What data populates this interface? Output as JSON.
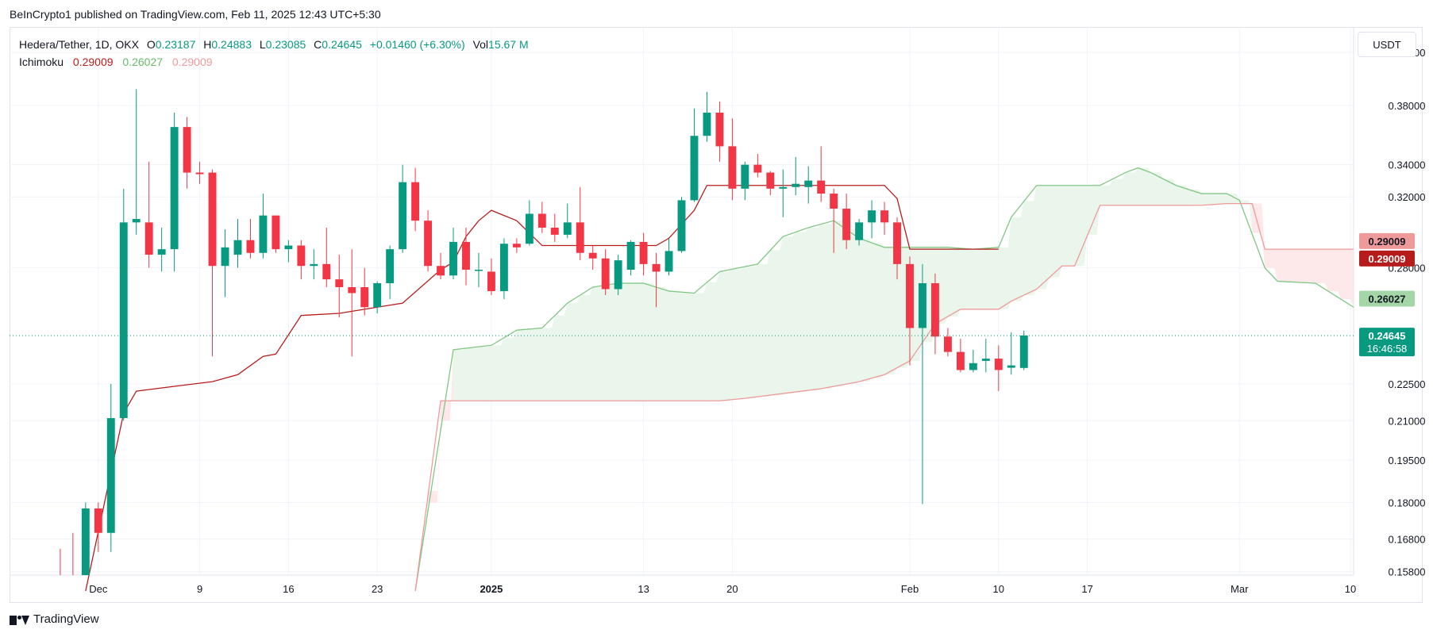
{
  "header": {
    "published": "BeInCrypto1 published on TradingView.com, Feb 11, 2025 12:43 UTC+5:30"
  },
  "legend": {
    "symbol": "Hedera/Tether, 1D, OKX",
    "open_label": "O",
    "open_value": "0.23187",
    "high_label": "H",
    "high_value": "0.24883",
    "low_label": "L",
    "low_value": "0.23085",
    "close_label": "C",
    "close_value": "0.24645",
    "change_value": "+0.01460 (+6.30%)",
    "vol_label": "Vol",
    "vol_value": "15.67 M",
    "indicator_name": "Ichimoku",
    "ichimoku_values": [
      "0.29009",
      "0.26027",
      "0.29009"
    ]
  },
  "currency_button": "USDT",
  "footer": {
    "brand": "TradingView"
  },
  "colors": {
    "up": "#089981",
    "down": "#f23645",
    "tenkan": "#b71c1c",
    "span_a": "#81c784",
    "span_b": "#ef9a9a",
    "cloud_bull": "#e8f5e9",
    "cloud_bear": "#fde7e7",
    "grid": "#f0f3fa"
  },
  "chart_data": {
    "type": "candlestick",
    "y_scale": "log",
    "ylim": [
      0.157,
      0.44
    ],
    "y_ticks": [
      0.42,
      0.38,
      0.34,
      0.32,
      0.28,
      0.225,
      0.21,
      0.195,
      0.18,
      0.168,
      0.158
    ],
    "y_tick_labels": [
      "0.42000",
      "0.38000",
      "0.34000",
      "0.32000",
      "0.28000",
      "0.22500",
      "0.21000",
      "0.19500",
      "0.18000",
      "0.16800",
      "0.15800"
    ],
    "x_ticks": [
      {
        "date": "2024-12-01",
        "label": "Dec",
        "bold": false
      },
      {
        "date": "2024-12-09",
        "label": "9",
        "bold": false
      },
      {
        "date": "2024-12-16",
        "label": "16",
        "bold": false
      },
      {
        "date": "2024-12-23",
        "label": "23",
        "bold": false
      },
      {
        "date": "2025-01-01",
        "label": "2025",
        "bold": true
      },
      {
        "date": "2025-01-13",
        "label": "13",
        "bold": false
      },
      {
        "date": "2025-01-20",
        "label": "20",
        "bold": false
      },
      {
        "date": "2025-02-03",
        "label": "Feb",
        "bold": false
      },
      {
        "date": "2025-02-10",
        "label": "10",
        "bold": false
      },
      {
        "date": "2025-02-17",
        "label": "17",
        "bold": false
      },
      {
        "date": "2025-03-01",
        "label": "Mar",
        "bold": false
      },
      {
        "date": "2025-03-10",
        "label": "10",
        "bold": false
      }
    ],
    "x_range": [
      "2024-11-24",
      "2025-03-10"
    ],
    "candles": [
      {
        "d": "2024-11-28",
        "o": 0.1485,
        "h": 0.165,
        "l": 0.14,
        "c": 0.146
      },
      {
        "d": "2024-11-29",
        "o": 0.152,
        "h": 0.17,
        "l": 0.14,
        "c": 0.145
      },
      {
        "d": "2024-11-30",
        "o": 0.156,
        "h": 0.18,
        "l": 0.15,
        "c": 0.178
      },
      {
        "d": "2024-12-01",
        "o": 0.178,
        "h": 0.18,
        "l": 0.164,
        "c": 0.17
      },
      {
        "d": "2024-12-02",
        "o": 0.17,
        "h": 0.225,
        "l": 0.164,
        "c": 0.211
      },
      {
        "d": "2024-12-03",
        "o": 0.211,
        "h": 0.325,
        "l": 0.21,
        "c": 0.305
      },
      {
        "d": "2024-12-04",
        "o": 0.305,
        "h": 0.392,
        "l": 0.298,
        "c": 0.307
      },
      {
        "d": "2024-12-05",
        "o": 0.305,
        "h": 0.342,
        "l": 0.28,
        "c": 0.287
      },
      {
        "d": "2024-12-06",
        "o": 0.287,
        "h": 0.302,
        "l": 0.278,
        "c": 0.29
      },
      {
        "d": "2024-12-07",
        "o": 0.29,
        "h": 0.375,
        "l": 0.278,
        "c": 0.365
      },
      {
        "d": "2024-12-08",
        "o": 0.365,
        "h": 0.372,
        "l": 0.325,
        "c": 0.335
      },
      {
        "d": "2024-12-09",
        "o": 0.335,
        "h": 0.342,
        "l": 0.328,
        "c": 0.334
      },
      {
        "d": "2024-12-10",
        "o": 0.335,
        "h": 0.337,
        "l": 0.237,
        "c": 0.281
      },
      {
        "d": "2024-12-11",
        "o": 0.281,
        "h": 0.301,
        "l": 0.265,
        "c": 0.291
      },
      {
        "d": "2024-12-12",
        "o": 0.287,
        "h": 0.307,
        "l": 0.28,
        "c": 0.295
      },
      {
        "d": "2024-12-13",
        "o": 0.295,
        "h": 0.307,
        "l": 0.285,
        "c": 0.288
      },
      {
        "d": "2024-12-14",
        "o": 0.288,
        "h": 0.322,
        "l": 0.285,
        "c": 0.309
      },
      {
        "d": "2024-12-15",
        "o": 0.309,
        "h": 0.309,
        "l": 0.288,
        "c": 0.29
      },
      {
        "d": "2024-12-16",
        "o": 0.29,
        "h": 0.295,
        "l": 0.283,
        "c": 0.292
      },
      {
        "d": "2024-12-17",
        "o": 0.292,
        "h": 0.295,
        "l": 0.274,
        "c": 0.281
      },
      {
        "d": "2024-12-18",
        "o": 0.281,
        "h": 0.29,
        "l": 0.274,
        "c": 0.282
      },
      {
        "d": "2024-12-19",
        "o": 0.282,
        "h": 0.302,
        "l": 0.27,
        "c": 0.274
      },
      {
        "d": "2024-12-20",
        "o": 0.274,
        "h": 0.287,
        "l": 0.255,
        "c": 0.27
      },
      {
        "d": "2024-12-21",
        "o": 0.27,
        "h": 0.29,
        "l": 0.237,
        "c": 0.267
      },
      {
        "d": "2024-12-22",
        "o": 0.27,
        "h": 0.28,
        "l": 0.256,
        "c": 0.26
      },
      {
        "d": "2024-12-23",
        "o": 0.26,
        "h": 0.273,
        "l": 0.257,
        "c": 0.272
      },
      {
        "d": "2024-12-24",
        "o": 0.272,
        "h": 0.292,
        "l": 0.264,
        "c": 0.29
      },
      {
        "d": "2024-12-25",
        "o": 0.29,
        "h": 0.34,
        "l": 0.288,
        "c": 0.329
      },
      {
        "d": "2024-12-26",
        "o": 0.329,
        "h": 0.338,
        "l": 0.3,
        "c": 0.306
      },
      {
        "d": "2024-12-27",
        "o": 0.306,
        "h": 0.312,
        "l": 0.278,
        "c": 0.281
      },
      {
        "d": "2024-12-28",
        "o": 0.281,
        "h": 0.288,
        "l": 0.274,
        "c": 0.276
      },
      {
        "d": "2024-12-29",
        "o": 0.276,
        "h": 0.302,
        "l": 0.274,
        "c": 0.294
      },
      {
        "d": "2024-12-30",
        "o": 0.294,
        "h": 0.302,
        "l": 0.271,
        "c": 0.279
      },
      {
        "d": "2024-12-31",
        "o": 0.279,
        "h": 0.288,
        "l": 0.27,
        "c": 0.279
      },
      {
        "d": "2025-01-01",
        "o": 0.278,
        "h": 0.285,
        "l": 0.266,
        "c": 0.268
      },
      {
        "d": "2025-01-02",
        "o": 0.268,
        "h": 0.296,
        "l": 0.264,
        "c": 0.293
      },
      {
        "d": "2025-01-03",
        "o": 0.293,
        "h": 0.296,
        "l": 0.288,
        "c": 0.291
      },
      {
        "d": "2025-01-04",
        "o": 0.293,
        "h": 0.318,
        "l": 0.292,
        "c": 0.31
      },
      {
        "d": "2025-01-05",
        "o": 0.31,
        "h": 0.317,
        "l": 0.299,
        "c": 0.302
      },
      {
        "d": "2025-01-06",
        "o": 0.302,
        "h": 0.31,
        "l": 0.294,
        "c": 0.298
      },
      {
        "d": "2025-01-07",
        "o": 0.298,
        "h": 0.316,
        "l": 0.296,
        "c": 0.305
      },
      {
        "d": "2025-01-08",
        "o": 0.305,
        "h": 0.326,
        "l": 0.284,
        "c": 0.288
      },
      {
        "d": "2025-01-09",
        "o": 0.288,
        "h": 0.292,
        "l": 0.279,
        "c": 0.285
      },
      {
        "d": "2025-01-10",
        "o": 0.285,
        "h": 0.29,
        "l": 0.266,
        "c": 0.269
      },
      {
        "d": "2025-01-11",
        "o": 0.269,
        "h": 0.287,
        "l": 0.266,
        "c": 0.284
      },
      {
        "d": "2025-01-12",
        "o": 0.279,
        "h": 0.295,
        "l": 0.276,
        "c": 0.294
      },
      {
        "d": "2025-01-13",
        "o": 0.294,
        "h": 0.299,
        "l": 0.276,
        "c": 0.282
      },
      {
        "d": "2025-01-14",
        "o": 0.282,
        "h": 0.288,
        "l": 0.26,
        "c": 0.278
      },
      {
        "d": "2025-01-15",
        "o": 0.278,
        "h": 0.296,
        "l": 0.276,
        "c": 0.289
      },
      {
        "d": "2025-01-16",
        "o": 0.289,
        "h": 0.32,
        "l": 0.288,
        "c": 0.318
      },
      {
        "d": "2025-01-17",
        "o": 0.318,
        "h": 0.378,
        "l": 0.317,
        "c": 0.359
      },
      {
        "d": "2025-01-18",
        "o": 0.359,
        "h": 0.39,
        "l": 0.355,
        "c": 0.375
      },
      {
        "d": "2025-01-19",
        "o": 0.375,
        "h": 0.383,
        "l": 0.342,
        "c": 0.352
      },
      {
        "d": "2025-01-20",
        "o": 0.352,
        "h": 0.371,
        "l": 0.318,
        "c": 0.325
      },
      {
        "d": "2025-01-21",
        "o": 0.325,
        "h": 0.342,
        "l": 0.318,
        "c": 0.34
      },
      {
        "d": "2025-01-22",
        "o": 0.34,
        "h": 0.347,
        "l": 0.332,
        "c": 0.335
      },
      {
        "d": "2025-01-23",
        "o": 0.335,
        "h": 0.336,
        "l": 0.321,
        "c": 0.325
      },
      {
        "d": "2025-01-24",
        "o": 0.325,
        "h": 0.337,
        "l": 0.308,
        "c": 0.326
      },
      {
        "d": "2025-01-25",
        "o": 0.326,
        "h": 0.345,
        "l": 0.321,
        "c": 0.328
      },
      {
        "d": "2025-01-26",
        "o": 0.326,
        "h": 0.339,
        "l": 0.316,
        "c": 0.33
      },
      {
        "d": "2025-01-27",
        "o": 0.33,
        "h": 0.352,
        "l": 0.317,
        "c": 0.322
      },
      {
        "d": "2025-01-28",
        "o": 0.322,
        "h": 0.325,
        "l": 0.288,
        "c": 0.313
      },
      {
        "d": "2025-01-29",
        "o": 0.313,
        "h": 0.322,
        "l": 0.29,
        "c": 0.295
      },
      {
        "d": "2025-01-30",
        "o": 0.295,
        "h": 0.307,
        "l": 0.292,
        "c": 0.305
      },
      {
        "d": "2025-01-31",
        "o": 0.305,
        "h": 0.318,
        "l": 0.296,
        "c": 0.312
      },
      {
        "d": "2025-02-01",
        "o": 0.312,
        "h": 0.317,
        "l": 0.298,
        "c": 0.305
      },
      {
        "d": "2025-02-02",
        "o": 0.305,
        "h": 0.308,
        "l": 0.274,
        "c": 0.282
      },
      {
        "d": "2025-02-03",
        "o": 0.282,
        "h": 0.286,
        "l": 0.233,
        "c": 0.25
      },
      {
        "d": "2025-02-04",
        "o": 0.25,
        "h": 0.282,
        "l": 0.1795,
        "c": 0.272
      },
      {
        "d": "2025-02-05",
        "o": 0.272,
        "h": 0.277,
        "l": 0.238,
        "c": 0.246
      },
      {
        "d": "2025-02-06",
        "o": 0.246,
        "h": 0.25,
        "l": 0.237,
        "c": 0.239
      },
      {
        "d": "2025-02-07",
        "o": 0.239,
        "h": 0.245,
        "l": 0.23,
        "c": 0.231
      },
      {
        "d": "2025-02-08",
        "o": 0.231,
        "h": 0.24,
        "l": 0.23,
        "c": 0.234
      },
      {
        "d": "2025-02-09",
        "o": 0.235,
        "h": 0.245,
        "l": 0.23,
        "c": 0.236
      },
      {
        "d": "2025-02-10",
        "o": 0.236,
        "h": 0.242,
        "l": 0.222,
        "c": 0.231
      },
      {
        "d": "2025-02-11",
        "o": 0.232,
        "h": 0.248,
        "l": 0.229,
        "c": 0.233
      },
      {
        "d": "2025-02-12",
        "o": 0.2319,
        "h": 0.2488,
        "l": 0.2309,
        "c": 0.2465
      }
    ],
    "ichimoku": {
      "tenkan": [
        [
          "2024-11-30",
          0.15
        ],
        [
          "2024-12-03",
          0.213
        ],
        [
          "2024-12-04",
          0.222
        ],
        [
          "2024-12-07",
          0.224
        ],
        [
          "2024-12-10",
          0.226
        ],
        [
          "2024-12-12",
          0.229
        ],
        [
          "2024-12-14",
          0.237
        ],
        [
          "2024-12-15",
          0.238
        ],
        [
          "2024-12-17",
          0.256
        ],
        [
          "2024-12-20",
          0.257
        ],
        [
          "2024-12-23",
          0.26
        ],
        [
          "2024-12-25",
          0.262
        ],
        [
          "2024-12-28",
          0.279
        ],
        [
          "2024-12-29",
          0.283
        ],
        [
          "2024-12-30",
          0.297
        ],
        [
          "2024-12-31",
          0.306
        ],
        [
          "2025-01-01",
          0.312
        ],
        [
          "2025-01-03",
          0.306
        ],
        [
          "2025-01-05",
          0.292
        ],
        [
          "2025-01-08",
          0.292
        ],
        [
          "2025-01-14",
          0.292
        ],
        [
          "2025-01-15",
          0.296
        ],
        [
          "2025-01-17",
          0.312
        ],
        [
          "2025-01-18",
          0.327
        ],
        [
          "2025-02-01",
          0.327
        ],
        [
          "2025-02-02",
          0.319
        ],
        [
          "2025-02-03",
          0.29
        ],
        [
          "2025-02-10",
          0.29
        ]
      ],
      "span_a": [
        [
          "2024-12-26",
          0.15
        ],
        [
          "2024-12-29",
          0.24
        ],
        [
          "2025-01-01",
          0.242
        ],
        [
          "2025-01-03",
          0.249
        ],
        [
          "2025-01-05",
          0.25
        ],
        [
          "2025-01-07",
          0.262
        ],
        [
          "2025-01-09",
          0.27
        ],
        [
          "2025-01-11",
          0.272
        ],
        [
          "2025-01-13",
          0.272
        ],
        [
          "2025-01-15",
          0.268
        ],
        [
          "2025-01-17",
          0.267
        ],
        [
          "2025-01-19",
          0.278
        ],
        [
          "2025-01-22",
          0.282
        ],
        [
          "2025-01-24",
          0.297
        ],
        [
          "2025-01-26",
          0.302
        ],
        [
          "2025-01-28",
          0.306
        ],
        [
          "2025-01-30",
          0.296
        ],
        [
          "2025-02-01",
          0.291
        ],
        [
          "2025-02-03",
          0.291
        ],
        [
          "2025-02-06",
          0.291
        ],
        [
          "2025-02-08",
          0.29
        ],
        [
          "2025-02-10",
          0.291
        ],
        [
          "2025-02-11",
          0.308
        ],
        [
          "2025-02-13",
          0.327
        ],
        [
          "2025-02-18",
          0.327
        ],
        [
          "2025-02-20",
          0.335
        ],
        [
          "2025-02-21",
          0.338
        ],
        [
          "2025-02-22",
          0.335
        ],
        [
          "2025-02-24",
          0.327
        ],
        [
          "2025-02-26",
          0.322
        ],
        [
          "2025-02-28",
          0.322
        ],
        [
          "2025-03-01",
          0.318
        ],
        [
          "2025-03-03",
          0.28
        ],
        [
          "2025-03-04",
          0.273
        ],
        [
          "2025-03-07",
          0.272
        ],
        [
          "2025-03-10",
          0.26
        ]
      ],
      "span_b": [
        [
          "2024-12-26",
          0.15
        ],
        [
          "2024-12-28",
          0.218
        ],
        [
          "2025-01-05",
          0.218
        ],
        [
          "2025-01-19",
          0.218
        ],
        [
          "2025-01-21",
          0.219
        ],
        [
          "2025-01-24",
          0.221
        ],
        [
          "2025-01-27",
          0.223
        ],
        [
          "2025-01-30",
          0.226
        ],
        [
          "2025-02-01",
          0.229
        ],
        [
          "2025-02-03",
          0.235
        ],
        [
          "2025-02-05",
          0.252
        ],
        [
          "2025-02-07",
          0.259
        ],
        [
          "2025-02-10",
          0.259
        ],
        [
          "2025-02-11",
          0.263
        ],
        [
          "2025-02-13",
          0.269
        ],
        [
          "2025-02-15",
          0.281
        ],
        [
          "2025-02-16",
          0.281
        ],
        [
          "2025-02-18",
          0.315
        ],
        [
          "2025-02-26",
          0.315
        ],
        [
          "2025-02-28",
          0.316
        ],
        [
          "2025-03-02",
          0.316
        ],
        [
          "2025-03-03",
          0.29
        ],
        [
          "2025-03-10",
          0.29
        ]
      ]
    },
    "last_price_line": 0.24645,
    "axis_badges": [
      {
        "value": 0.29009,
        "label": "0.29009",
        "bg": "#ef9a9a",
        "fg": "#131722"
      },
      {
        "value": 0.29009,
        "label": "0.29009",
        "bg": "#b71c1c",
        "fg": "#ffffff",
        "offset": 1
      },
      {
        "value": 0.26027,
        "label": "0.26027",
        "bg": "#a5d6a7",
        "fg": "#131722"
      },
      {
        "value": 0.24645,
        "label": "0.24645",
        "sublabel": "16:46:58",
        "bg": "#089981",
        "fg": "#ffffff"
      }
    ]
  }
}
